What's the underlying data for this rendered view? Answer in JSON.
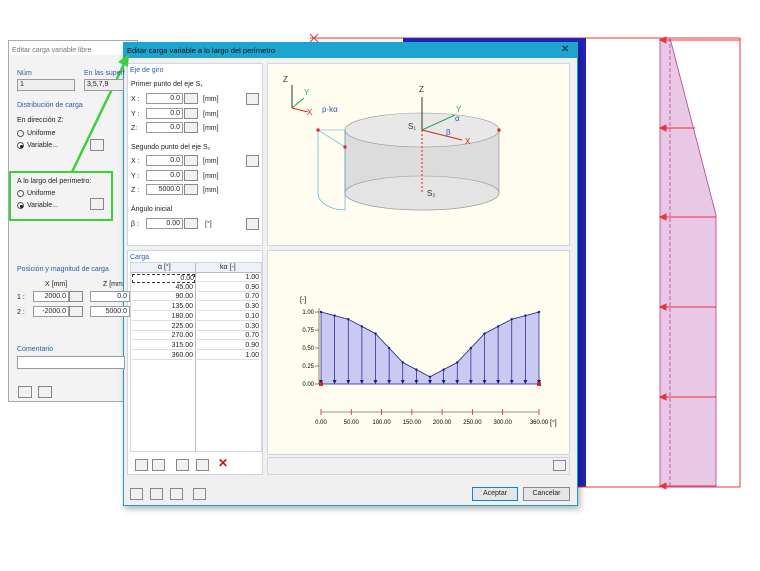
{
  "back_dialog": {
    "title": "Editar carga variable libre",
    "num_label": "Núm",
    "num": "1",
    "surfaces_label": "En las superf",
    "surfaces": "3,5,7,9",
    "distribution_title": "Distribución de carga",
    "direction_label": "En dirección Z:",
    "direction_options": [
      "Uniforme",
      "Variable..."
    ],
    "perimeter_label": "A lo largo del perímetro:",
    "perimeter_options": [
      "Uniforme",
      "Variable..."
    ],
    "position_title": "Posición y magnitud de carga",
    "columns": [
      "X [mm]",
      "Z [mm"
    ],
    "rows": [
      [
        "1 :",
        "2000.0",
        "0.0"
      ],
      [
        "2 :",
        "-2000.0",
        "5000.0"
      ]
    ],
    "comment_label": "Comentario"
  },
  "dialog": {
    "title": "Editar carga variable a lo largo del perímetro",
    "axis_title": "Eje de giro",
    "first_point_label": "Primer punto del eje S₁",
    "first_point": [
      [
        "X :",
        "0.0",
        "[mm]"
      ],
      [
        "Y :",
        "0.0",
        "[mm]"
      ],
      [
        "Z:",
        "0.0",
        "[mm]"
      ]
    ],
    "second_point_label": "Segundo punto del eje S₂",
    "second_point": [
      [
        "X :",
        "0.0",
        "[mm]"
      ],
      [
        "Y :",
        "0.0",
        "[mm]"
      ],
      [
        "Z :",
        "5000.0",
        "[mm]"
      ]
    ],
    "angle_label": "Ángulo inicial",
    "angle": [
      "β :",
      "0.00",
      "[°]"
    ],
    "load_title": "Carga",
    "table": {
      "columns": [
        "α [°]",
        "kα [-]"
      ],
      "rows": [
        [
          "0.00",
          "1.00"
        ],
        [
          "45.00",
          "0.90"
        ],
        [
          "90.00",
          "0.70"
        ],
        [
          "135.00",
          "0.30"
        ],
        [
          "180.00",
          "0.10"
        ],
        [
          "225.00",
          "0.30"
        ],
        [
          "270.00",
          "0.70"
        ],
        [
          "315.00",
          "0.90"
        ],
        [
          "360.00",
          "1.00"
        ]
      ]
    },
    "ok": "Aceptar",
    "cancel": "Cancelar"
  },
  "diagram": {
    "labels": [
      "Z",
      "Y",
      "X",
      "p·kα",
      "Z",
      "Y",
      "α",
      "S₁",
      "β",
      "X",
      "S₂"
    ]
  },
  "chart_data": {
    "type": "line",
    "y_label": "[-]",
    "x_label": "[°]",
    "x": [
      0,
      22.5,
      45,
      67.5,
      90,
      112.5,
      135,
      157.5,
      180,
      202.5,
      225,
      247.5,
      270,
      292.5,
      315,
      337.5,
      360
    ],
    "values": [
      1.0,
      0.95,
      0.9,
      0.8,
      0.7,
      0.5,
      0.3,
      0.2,
      0.1,
      0.2,
      0.3,
      0.5,
      0.7,
      0.8,
      0.9,
      0.95,
      1.0
    ],
    "color": "#1a1a8c",
    "fill_color": "#c9c9f2",
    "xlim": [
      0,
      360
    ],
    "ylim": [
      0,
      1
    ],
    "xticks": [
      {
        "value": 0,
        "label": "0.00"
      },
      {
        "value": 50,
        "label": "50.00"
      },
      {
        "value": 100,
        "label": "100.00"
      },
      {
        "value": 150,
        "label": "150.00"
      },
      {
        "value": 200,
        "label": "200.00"
      },
      {
        "value": 250,
        "label": "250.00"
      },
      {
        "value": 300,
        "label": "300.00"
      },
      {
        "value": 360,
        "label": "360.00"
      }
    ],
    "yticks": [
      {
        "value": 0,
        "label": "0.00"
      },
      {
        "value": 0.25,
        "label": "0.25"
      },
      {
        "value": 0.5,
        "label": "0.50"
      },
      {
        "value": 0.75,
        "label": "0.75"
      },
      {
        "value": 1,
        "label": "1.00"
      }
    ]
  }
}
